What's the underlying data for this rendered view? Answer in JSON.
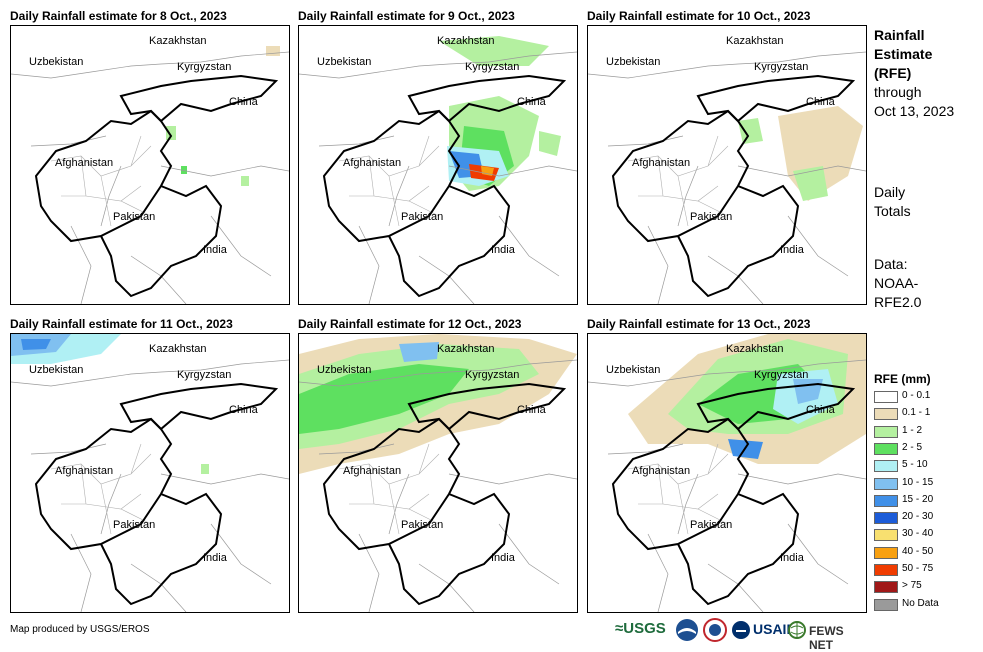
{
  "panels": [
    {
      "title": "Daily Rainfall estimate for 8 Oct., 2023"
    },
    {
      "title": "Daily Rainfall estimate for 9 Oct., 2023"
    },
    {
      "title": "Daily Rainfall estimate for 10 Oct., 2023"
    },
    {
      "title": "Daily Rainfall estimate for 11 Oct., 2023"
    },
    {
      "title": "Daily Rainfall estimate for 12 Oct., 2023"
    },
    {
      "title": "Daily Rainfall estimate for 13 Oct., 2023"
    }
  ],
  "country_labels": {
    "kazakhstan": "Kazakhstan",
    "uzbekistan": "Uzbekistan",
    "kyrgyzstan": "Kyrgyzstan",
    "china": "China",
    "afghanistan": "Afghanistan",
    "pakistan": "Pakistan",
    "india": "India"
  },
  "sidebar": {
    "title_line1": "Rainfall",
    "title_line2": "Estimate",
    "title_line3": "(RFE)",
    "through": "through",
    "date": "Oct 13, 2023",
    "daily": "Daily",
    "totals": "Totals",
    "data_label": "Data:",
    "source_line1": "NOAA-",
    "source_line2": "RFE2.0"
  },
  "legend": {
    "title": "RFE (mm)",
    "items": [
      {
        "label": "0 - 0.1",
        "color": "#ffffff"
      },
      {
        "label": "0.1 - 1",
        "color": "#ecdcb8"
      },
      {
        "label": "1 - 2",
        "color": "#b4f0a0"
      },
      {
        "label": "2 - 5",
        "color": "#5ee060"
      },
      {
        "label": "5 - 10",
        "color": "#b0f0f4"
      },
      {
        "label": "10 - 15",
        "color": "#80c0f0"
      },
      {
        "label": "15 - 20",
        "color": "#4090e8"
      },
      {
        "label": "20 - 30",
        "color": "#1c5cd8"
      },
      {
        "label": "30 - 40",
        "color": "#f8e070"
      },
      {
        "label": "40 - 50",
        "color": "#f8a010"
      },
      {
        "label": "50 - 75",
        "color": "#f03c00"
      },
      {
        "label": "> 75",
        "color": "#a01818"
      },
      {
        "label": "No Data",
        "color": "#9a9a9a"
      }
    ]
  },
  "footer": {
    "credit": "Map produced by USGS/EROS",
    "logos": {
      "usgs": "≈USGS",
      "usaid": "USAID",
      "fewsnet": "FEWS NET"
    }
  }
}
